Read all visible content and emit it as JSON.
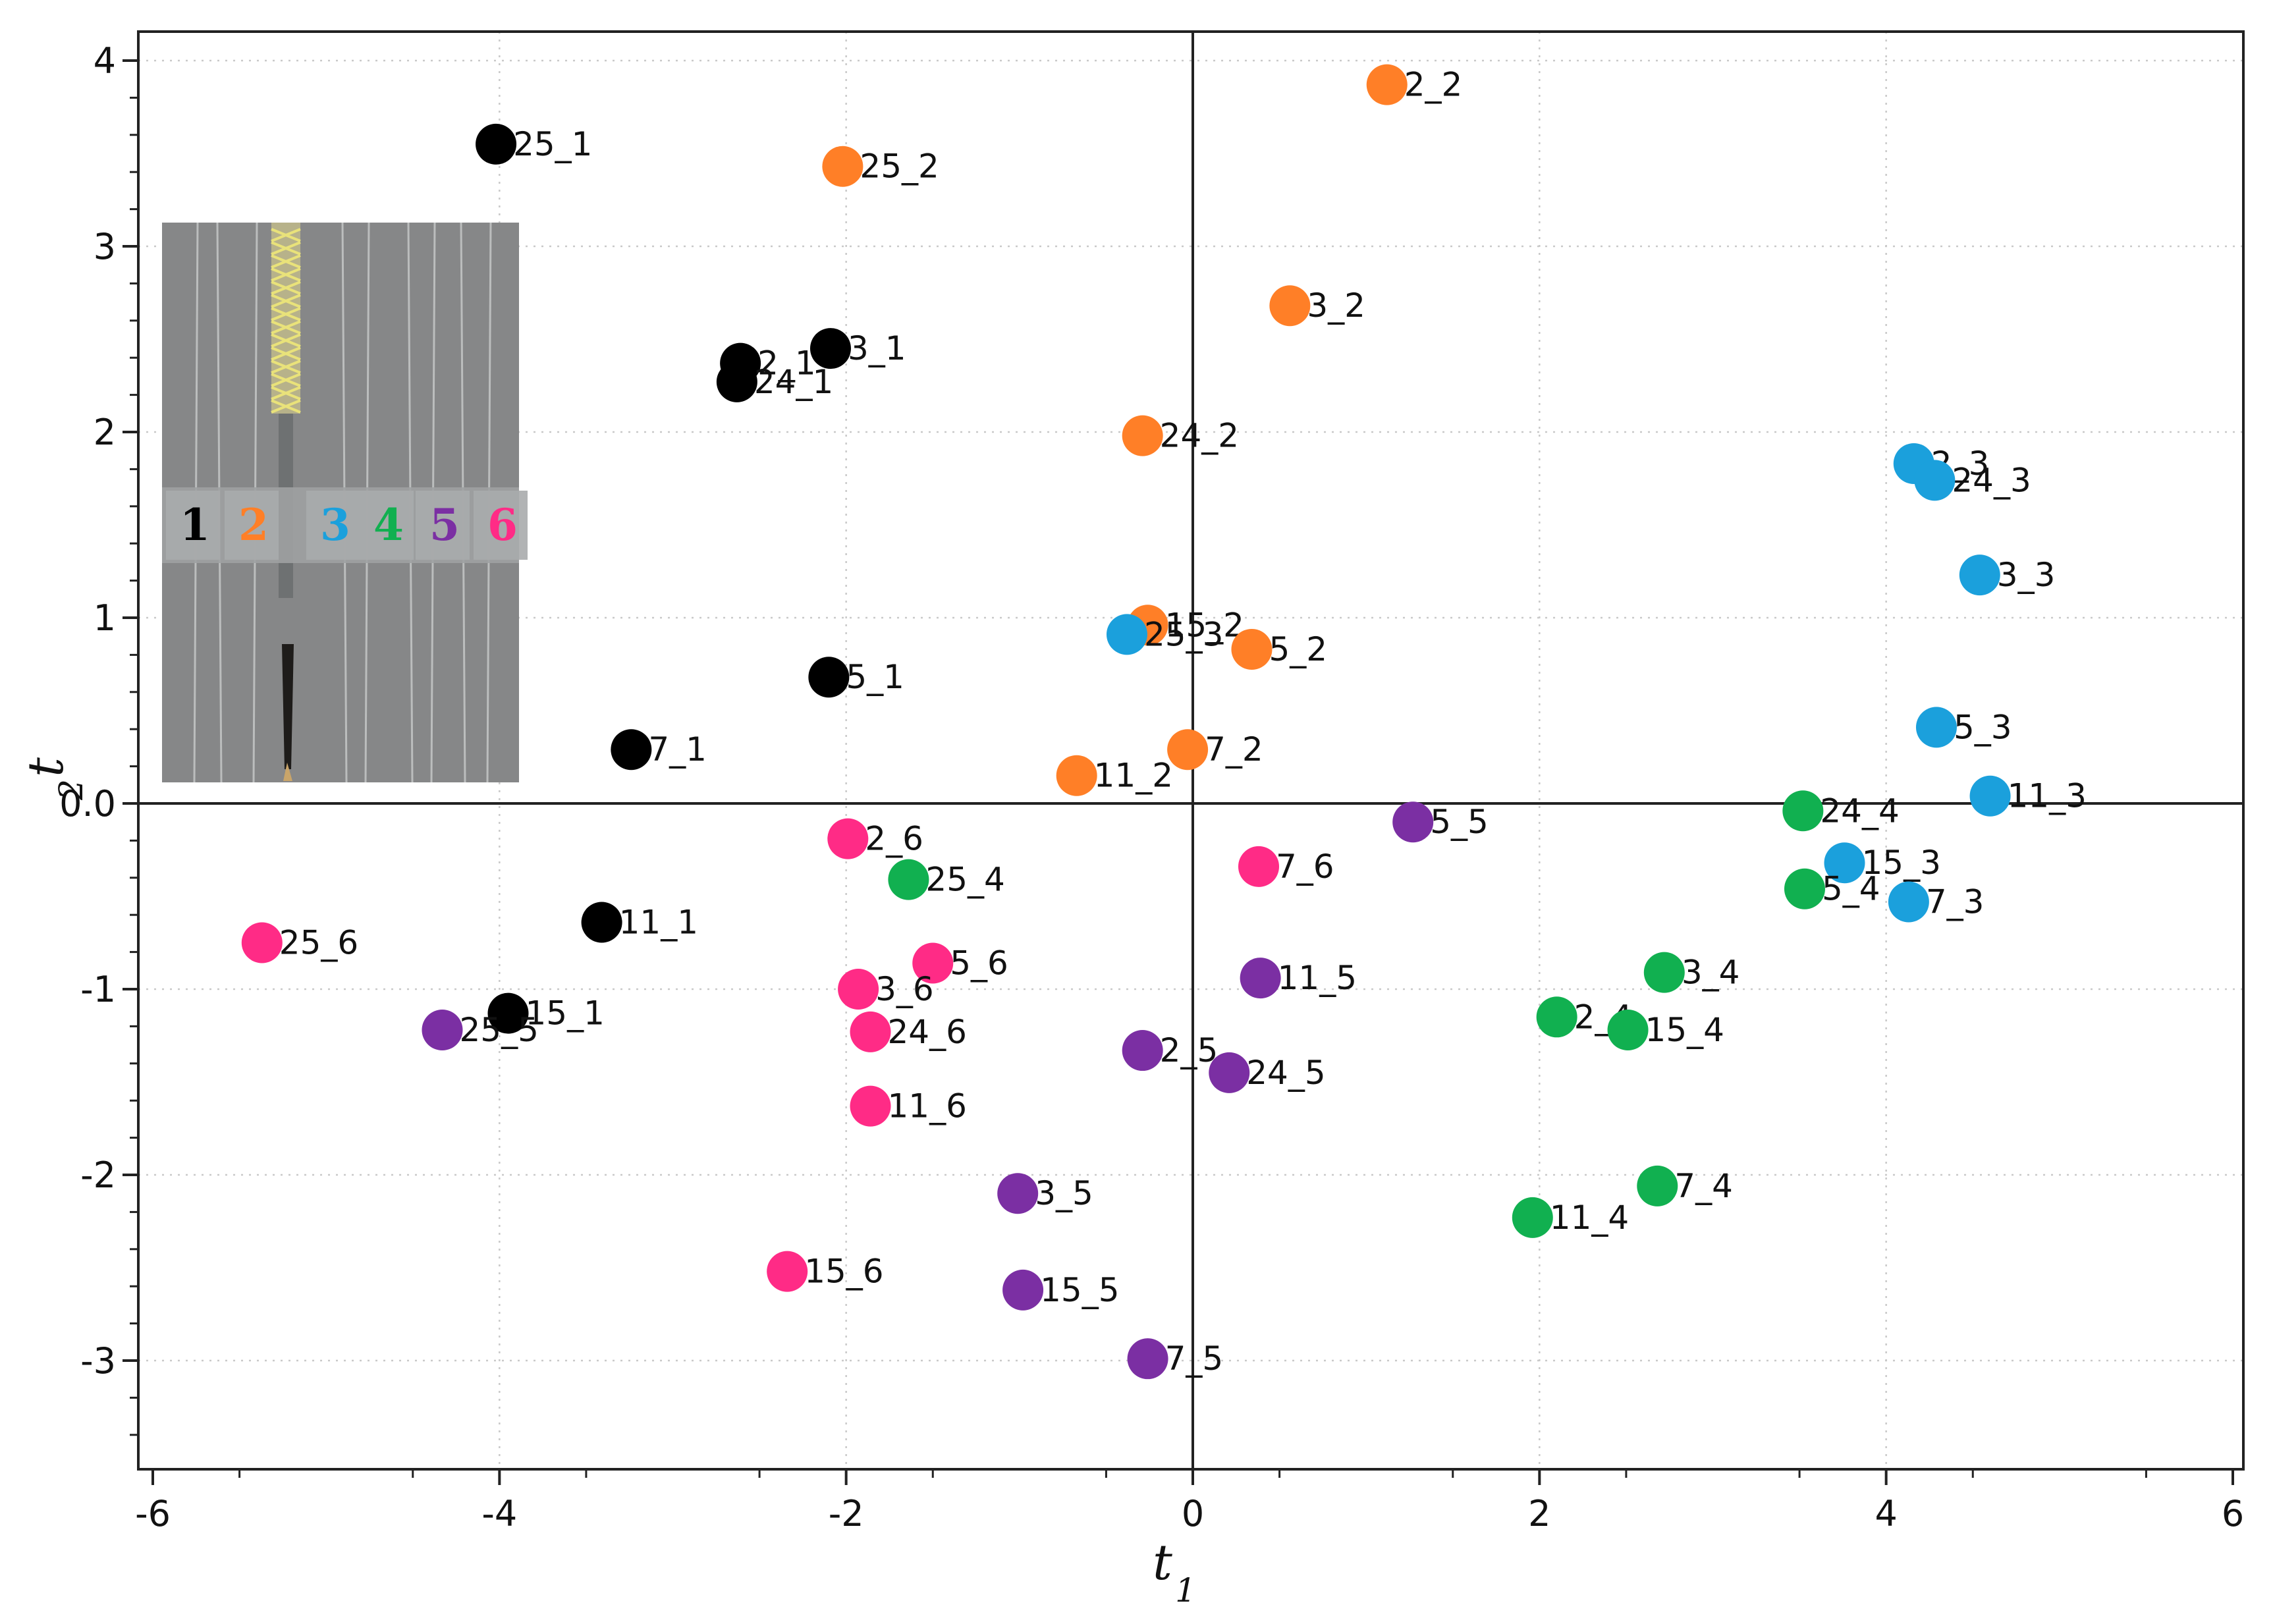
{
  "chart_data": {
    "type": "scatter",
    "title": "",
    "xlabel": "t",
    "xlabel_sub": "1",
    "ylabel": "t",
    "ylabel_sub": "2",
    "xlim": [
      -6,
      6
    ],
    "ylim": [
      -3.5,
      4.2
    ],
    "grid": true,
    "x_ticks": [
      {
        "v": -6,
        "label": "-6"
      },
      {
        "v": -4,
        "label": "-4"
      },
      {
        "v": -2,
        "label": "-2"
      },
      {
        "v": 0,
        "label": "0"
      },
      {
        "v": 2,
        "label": "2"
      },
      {
        "v": 4,
        "label": "4"
      },
      {
        "v": 6,
        "label": "6"
      }
    ],
    "y_ticks": [
      {
        "v": -3,
        "label": "-3"
      },
      {
        "v": -2,
        "label": "-2"
      },
      {
        "v": -1,
        "label": "-1"
      },
      {
        "v": 0,
        "label": "0.0"
      },
      {
        "v": 1,
        "label": "1"
      },
      {
        "v": 2,
        "label": "2"
      },
      {
        "v": 3,
        "label": "3"
      },
      {
        "v": 4,
        "label": "4"
      }
    ],
    "legend": {
      "placement": "top-left inset photo",
      "entries": [
        {
          "label": "1",
          "color": "#000000"
        },
        {
          "label": "2",
          "color": "#ff7f27"
        },
        {
          "label": "3",
          "color": "#1ba0dc"
        },
        {
          "label": "4",
          "color": "#11b050"
        },
        {
          "label": "5",
          "color": "#7b2fa3"
        },
        {
          "label": "6",
          "color": "#ff2b86"
        }
      ]
    },
    "series": [
      {
        "name": "1",
        "color": "#000000",
        "points": [
          {
            "x": -4.02,
            "y": 3.55,
            "label": "25_1"
          },
          {
            "x": -2.09,
            "y": 2.45,
            "label": "3_1"
          },
          {
            "x": -2.61,
            "y": 2.37,
            "label": "2_1"
          },
          {
            "x": -2.63,
            "y": 2.27,
            "label": "24_1"
          },
          {
            "x": -2.1,
            "y": 0.68,
            "label": "5_1"
          },
          {
            "x": -3.24,
            "y": 0.29,
            "label": "7_1"
          },
          {
            "x": -3.41,
            "y": -0.64,
            "label": "11_1"
          },
          {
            "x": -3.95,
            "y": -1.13,
            "label": "15_1"
          }
        ]
      },
      {
        "name": "2",
        "color": "#ff7f27",
        "points": [
          {
            "x": 1.12,
            "y": 3.87,
            "label": "2_2"
          },
          {
            "x": -2.02,
            "y": 3.43,
            "label": "25_2"
          },
          {
            "x": 0.56,
            "y": 2.68,
            "label": "3_2"
          },
          {
            "x": -0.29,
            "y": 1.98,
            "label": "24_2"
          },
          {
            "x": -0.26,
            "y": 0.96,
            "label": "15_2"
          },
          {
            "x": 0.34,
            "y": 0.83,
            "label": "5_2"
          },
          {
            "x": -0.03,
            "y": 0.29,
            "label": "7_2"
          },
          {
            "x": -0.67,
            "y": 0.15,
            "label": "11_2"
          }
        ]
      },
      {
        "name": "3",
        "color": "#1ba0dc",
        "points": [
          {
            "x": 4.16,
            "y": 1.83,
            "label": "2_3"
          },
          {
            "x": 4.28,
            "y": 1.74,
            "label": "24_3"
          },
          {
            "x": 4.54,
            "y": 1.23,
            "label": "3_3"
          },
          {
            "x": -0.38,
            "y": 0.91,
            "label": "25_3"
          },
          {
            "x": 4.29,
            "y": 0.41,
            "label": "5_3"
          },
          {
            "x": 4.6,
            "y": 0.04,
            "label": "11_3"
          },
          {
            "x": 3.76,
            "y": -0.32,
            "label": "15_3"
          },
          {
            "x": 4.13,
            "y": -0.53,
            "label": "7_3"
          }
        ]
      },
      {
        "name": "4",
        "color": "#11b050",
        "points": [
          {
            "x": 3.52,
            "y": -0.04,
            "label": "24_4"
          },
          {
            "x": -1.64,
            "y": -0.41,
            "label": "25_4"
          },
          {
            "x": 3.53,
            "y": -0.46,
            "label": "5_4"
          },
          {
            "x": 2.72,
            "y": -0.91,
            "label": "3_4"
          },
          {
            "x": 2.1,
            "y": -1.15,
            "label": "2_4"
          },
          {
            "x": 2.51,
            "y": -1.22,
            "label": "15_4"
          },
          {
            "x": 2.68,
            "y": -2.06,
            "label": "7_4"
          },
          {
            "x": 1.96,
            "y": -2.23,
            "label": "11_4"
          }
        ]
      },
      {
        "name": "5",
        "color": "#7b2fa3",
        "points": [
          {
            "x": 1.27,
            "y": -0.1,
            "label": "5_5"
          },
          {
            "x": 0.39,
            "y": -0.94,
            "label": "11_5"
          },
          {
            "x": -4.33,
            "y": -1.22,
            "label": "25_5"
          },
          {
            "x": -0.29,
            "y": -1.33,
            "label": "2_5"
          },
          {
            "x": 0.21,
            "y": -1.45,
            "label": "24_5"
          },
          {
            "x": -1.01,
            "y": -2.1,
            "label": "3_5"
          },
          {
            "x": -0.98,
            "y": -2.62,
            "label": "15_5"
          },
          {
            "x": -0.26,
            "y": -2.99,
            "label": "7_5"
          }
        ]
      },
      {
        "name": "6",
        "color": "#ff2b86",
        "points": [
          {
            "x": -1.99,
            "y": -0.19,
            "label": "2_6"
          },
          {
            "x": 0.38,
            "y": -0.34,
            "label": "7_6"
          },
          {
            "x": -5.37,
            "y": -0.75,
            "label": "25_6"
          },
          {
            "x": -1.5,
            "y": -0.86,
            "label": "5_6"
          },
          {
            "x": -1.93,
            "y": -1.0,
            "label": "3_6"
          },
          {
            "x": -1.86,
            "y": -1.23,
            "label": "24_6"
          },
          {
            "x": -1.86,
            "y": -1.63,
            "label": "11_6"
          },
          {
            "x": -2.34,
            "y": -2.52,
            "label": "15_6"
          }
        ]
      }
    ]
  }
}
